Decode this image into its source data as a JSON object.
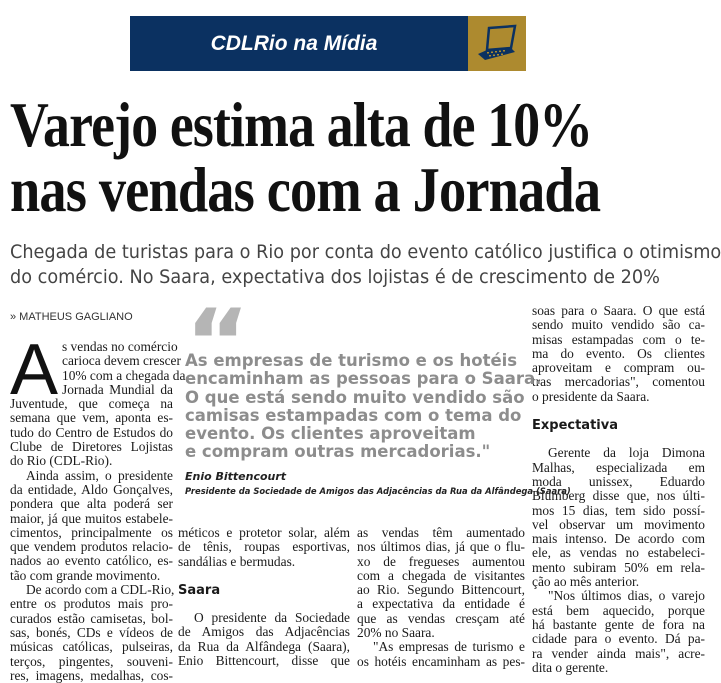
{
  "banner": {
    "title": "CDLRio na Mídia",
    "icon": "laptop-icon",
    "colors": {
      "navy": "#0b3161",
      "gold": "#ad8a2f"
    }
  },
  "headline": [
    "Varejo estima alta de 10%",
    "nas vendas com a Jornada"
  ],
  "subtitle": [
    "Chegada de turistas para o Rio por conta do evento católico justifica o otimismo",
    "do comércio. No Saara, expectativa dos lojistas é de crescimento de 20%"
  ],
  "byline": "» MATHEUS GAGLIANO",
  "dropcap": "A",
  "quote": {
    "lines": [
      "As empresas de turismo e os hotéis",
      "encaminham as pessoas para o Saara.",
      "O que está sendo muito vendido são",
      "camisas estampadas com o tema do",
      "evento. Os clientes aproveitam",
      "e compram outras mercadorias.\""
    ],
    "name": "Enio Bittencourt",
    "role": "Presidente da Sociedade de Amigos das Adjacências da Rua da Alfândega (Saara)"
  },
  "columns": [
    {
      "blocks": [
        {
          "type": "p",
          "drop": true,
          "lines": [
            "s vendas no comércio",
            "carioca devem crescer",
            "10% com a chegada da",
            "Jornada Mundial da",
            "Juventude, que começa na",
            "semana que vem, aponta es-",
            "tudo do Centro de Estudos do",
            "Clube de Diretores Lojistas",
            "do Rio (CDL-Rio)."
          ]
        },
        {
          "type": "p",
          "lines": [
            "Ainda assim, o presidente",
            "da entidade, Aldo Gonçalves,",
            "pondera que alta poderá ser",
            "maior, já que muitos estabele-",
            "cimentos, principalmente os",
            "que vendem produtos relacio-",
            "nados ao evento católico, es-",
            "tão com grande movimento."
          ]
        },
        {
          "type": "p",
          "lines": [
            "De acordo com a CDL-Rio,",
            "entre os produtos mais pro-",
            "curados estão camisetas, bol-",
            "sas, bonés, CDs e vídeos de",
            "músicas católicas, pulseiras,",
            "terços, pingentes, souveni-",
            "res, imagens, medalhas, cos-"
          ],
          "cont": true
        }
      ]
    },
    {
      "blocks": [
        {
          "type": "p",
          "noindent": true,
          "lines": [
            "méticos e protetor solar, além",
            "de tênis, roupas esportivas,",
            "sandálias e bermudas."
          ]
        },
        {
          "type": "h",
          "text": "Saara"
        },
        {
          "type": "p",
          "lines": [
            "O presidente da Sociedade",
            "de Amigos das Adjacências",
            "da Rua da Alfândega (Saara),",
            "Enio Bittencourt, disse que"
          ],
          "cont": true
        }
      ]
    },
    {
      "blocks": [
        {
          "type": "p",
          "noindent": true,
          "lines": [
            "as vendas têm aumentado",
            "nos últimos dias, já que o flu-",
            "xo de fregueses aumentou",
            "com a chegada de visitantes",
            "ao Rio. Segundo Bittencourt,",
            "a expectativa da entidade é",
            "que as vendas cresçam até",
            "20% no Saara."
          ]
        },
        {
          "type": "p",
          "lines": [
            "\"As empresas de turismo e",
            "os hotéis encaminham as pes-"
          ],
          "cont": true
        }
      ]
    },
    {
      "blocks": [
        {
          "type": "p",
          "noindent": true,
          "lines": [
            "soas para o Saara. O que está",
            "sendo muito vendido são ca-",
            "misas estampadas com o te-",
            "ma do evento. Os clientes",
            "aproveitam e compram ou-",
            "tras mercadorias\", comentou",
            "o presidente da Saara."
          ]
        },
        {
          "type": "h",
          "text": "Expectativa"
        },
        {
          "type": "p",
          "lines": [
            "Gerente da loja Dimona",
            "Malhas, especializada em",
            "moda unissex, Eduardo",
            "Blumberg disse que, nos últi-",
            "mos 15 dias, tem sido possí-",
            "vel observar um movimento",
            "mais intenso. De acordo com",
            "ele, as vendas no estabeleci-",
            "mento subiram 50% em rela-",
            "ção ao mês anterior."
          ]
        },
        {
          "type": "p",
          "lines": [
            "\"Nos últimos dias, o varejo",
            "está bem aquecido, porque",
            "há bastante gente de fora na",
            "cidade para o evento. Dá pa-",
            "ra vender ainda mais\", acre-",
            "dita o gerente."
          ]
        }
      ]
    }
  ]
}
